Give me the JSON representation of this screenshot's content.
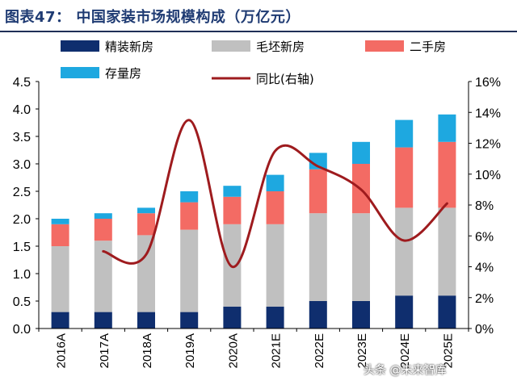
{
  "header": {
    "title": "图表47：   中国家装市场规模构成（万亿元）"
  },
  "watermark": "头条 @未来智库",
  "colors": {
    "jingzhuang": "#0f2e6e",
    "maopi": "#c0c0c0",
    "ershou": "#f36b64",
    "cunliang": "#1ea8e0",
    "yoy": "#9e1b1e",
    "title": "#1f3b73"
  },
  "chart_data": {
    "type": "bar",
    "stacked": true,
    "categories": [
      "2016A",
      "2017A",
      "2018A",
      "2019A",
      "2020A",
      "2021E",
      "2022E",
      "2023E",
      "2024E",
      "2025E"
    ],
    "series": [
      {
        "name": "精装新房",
        "values": [
          0.3,
          0.3,
          0.3,
          0.3,
          0.4,
          0.4,
          0.5,
          0.5,
          0.6,
          0.6
        ]
      },
      {
        "name": "毛坯新房",
        "values": [
          1.2,
          1.3,
          1.4,
          1.5,
          1.5,
          1.5,
          1.6,
          1.6,
          1.6,
          1.6
        ]
      },
      {
        "name": "二手房",
        "values": [
          0.4,
          0.4,
          0.4,
          0.5,
          0.5,
          0.6,
          0.8,
          0.9,
          1.1,
          1.2
        ]
      },
      {
        "name": "存量房",
        "values": [
          0.1,
          0.1,
          0.1,
          0.2,
          0.2,
          0.3,
          0.3,
          0.4,
          0.5,
          0.5
        ]
      }
    ],
    "line_series": {
      "name": "同比(右轴)",
      "axis": "right",
      "values": [
        null,
        5.0,
        4.8,
        13.5,
        4.0,
        11.5,
        10.5,
        9.0,
        5.7,
        8.1
      ]
    },
    "ylim": [
      0,
      4.5
    ],
    "yticks": [
      "0.0",
      "0.5",
      "1.0",
      "1.5",
      "2.0",
      "2.5",
      "3.0",
      "3.5",
      "4.0",
      "4.5"
    ],
    "y2lim": [
      0,
      16
    ],
    "y2ticks": [
      "0%",
      "2%",
      "4%",
      "6%",
      "8%",
      "10%",
      "12%",
      "14%",
      "16%"
    ],
    "legend": "top",
    "grid": false
  }
}
